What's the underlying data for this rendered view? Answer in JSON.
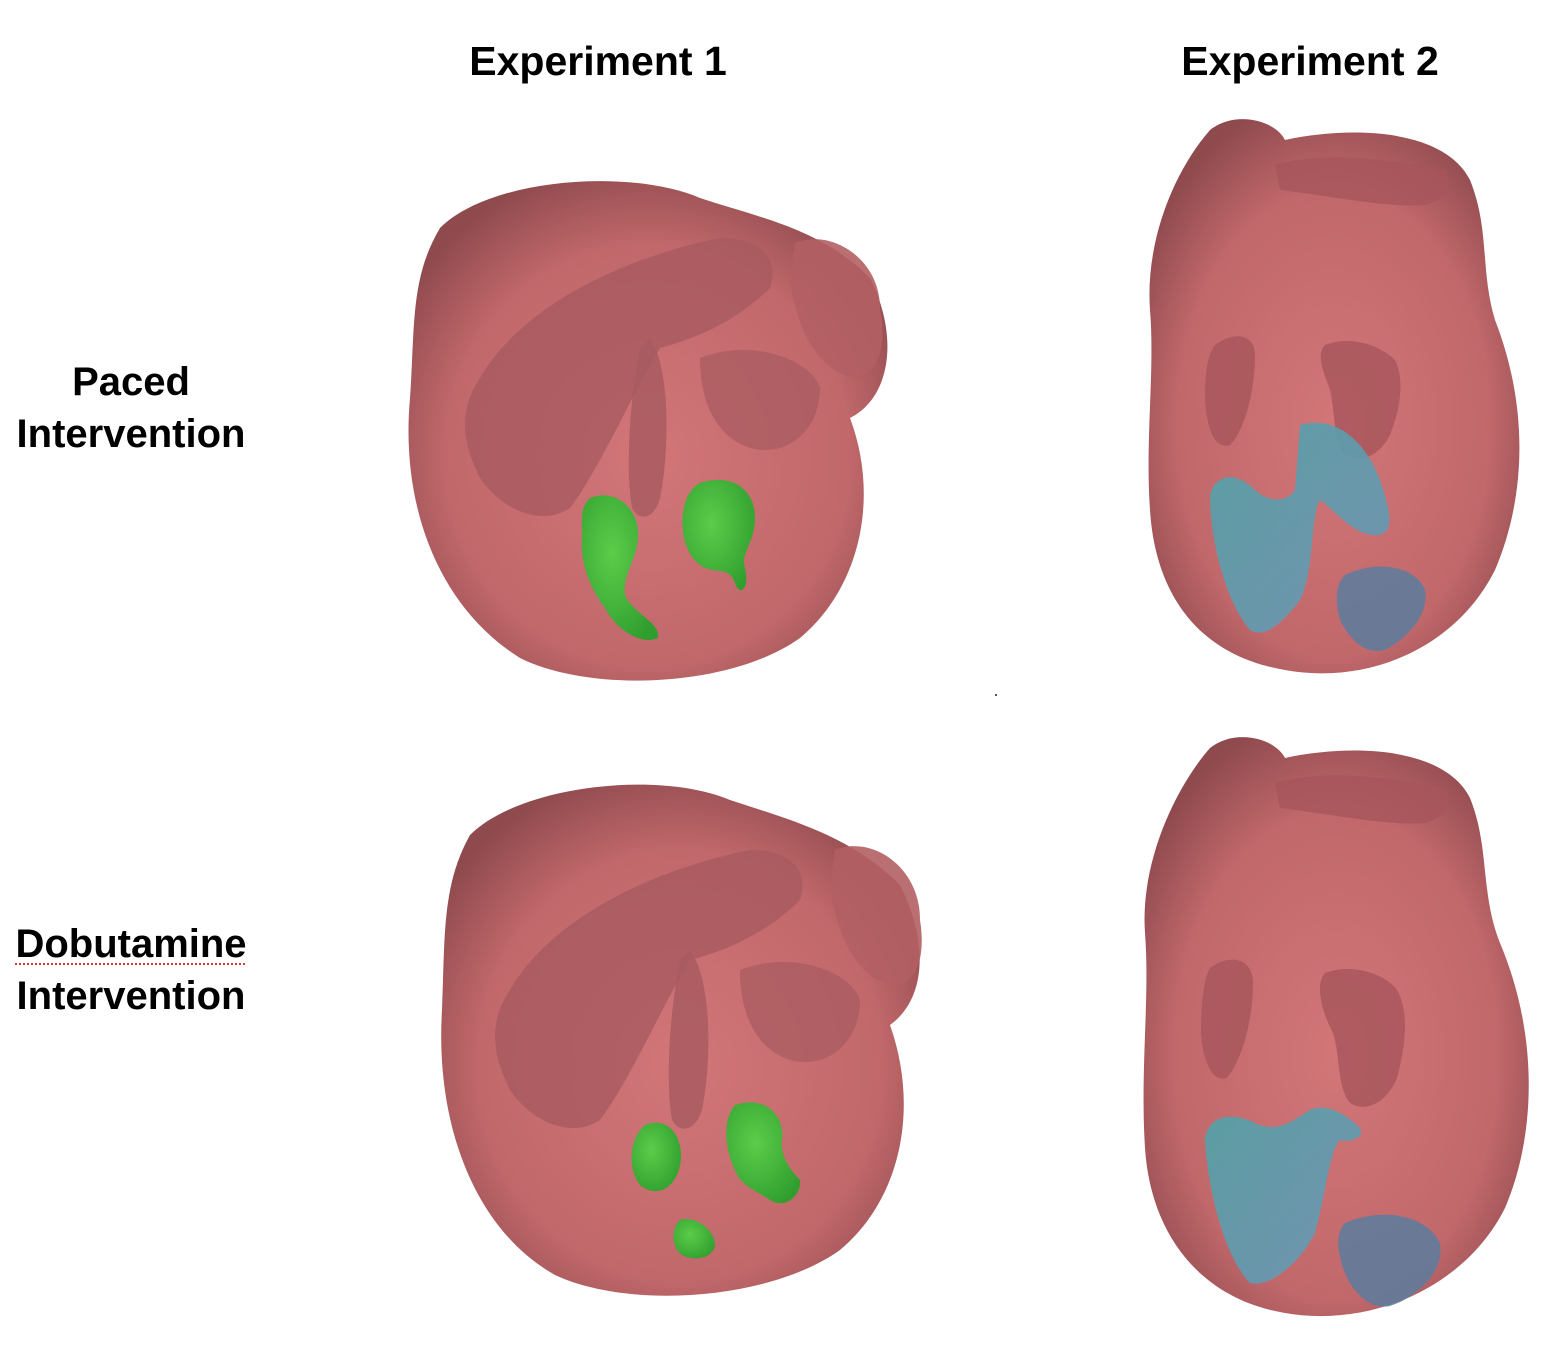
{
  "columns": {
    "experiment_1": "Experiment 1",
    "experiment_2": "Experiment 2"
  },
  "rows": {
    "paced": {
      "line1": "Paced",
      "line2": "Intervention"
    },
    "dobutamine": {
      "line1": "Dobutamine",
      "line2": "Intervention"
    }
  },
  "colors": {
    "heart_surface": "#c66a6c",
    "heart_shadow": "#9a4d51",
    "inner_structure": "#a85a5e",
    "green_region": "#3db53a",
    "cyan_region": "#5fa6b4"
  }
}
